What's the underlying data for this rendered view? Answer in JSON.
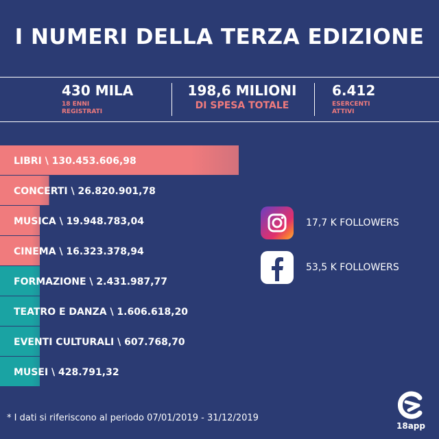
{
  "header": {
    "title": "I NUMERI DELLA TERZA EDIZIONE"
  },
  "stats": [
    {
      "value": "430 MILA",
      "label_line1": "18 ENNI",
      "label_line2": "REGISTRATI"
    },
    {
      "value": "198,6 MILIONI",
      "label_line1": "DI SPESA TOTALE"
    },
    {
      "value": "6.412",
      "label_line1": "ESERCENTI",
      "label_line2": "ATTIVI"
    }
  ],
  "chart_data": {
    "type": "bar",
    "orientation": "horizontal",
    "categories": [
      "LIBRI",
      "CONCERTI",
      "MUSICA",
      "CINEMA",
      "FORMAZIONE",
      "TEATRO E DANZA",
      "EVENTI CULTURALI",
      "MUSEI"
    ],
    "values": [
      130453606.98,
      26820901.78,
      19948783.04,
      16323378.94,
      2431987.77,
      1606618.2,
      607768.7,
      428791.32
    ],
    "labels": [
      "LIBRI \\ 130.453.606,98",
      "CONCERTI \\ 26.820.901,78",
      "MUSICA \\ 19.948.783,04",
      "CINEMA \\ 16.323.378,94",
      "FORMAZIONE \\ 2.431.987,77",
      "TEATRO E DANZA \\ 1.606.618,20",
      "EVENTI CULTURALI \\ 607.768,70",
      "MUSEI \\ 428.791,32"
    ],
    "bar_colors": [
      "#f07b7d",
      "#f07b7d",
      "#f07b7d",
      "#f07b7d",
      "#1aa3a3",
      "#1aa3a3",
      "#1aa3a3",
      "#1aa3a3"
    ]
  },
  "social": {
    "instagram": {
      "icon": "instagram-icon",
      "followers": "17,7 K FOLLOWERS"
    },
    "facebook": {
      "icon": "facebook-icon",
      "followers": "53,5 K FOLLOWERS"
    }
  },
  "footnote": "* I dati si riferiscono al periodo 07/01/2019 - 31/12/2019",
  "logo": {
    "text": "18app",
    "icon": "18app-logo-icon"
  },
  "colors": {
    "background": "#2b3b73",
    "accent_pink": "#f07b7d",
    "accent_teal": "#1aa3a3"
  }
}
